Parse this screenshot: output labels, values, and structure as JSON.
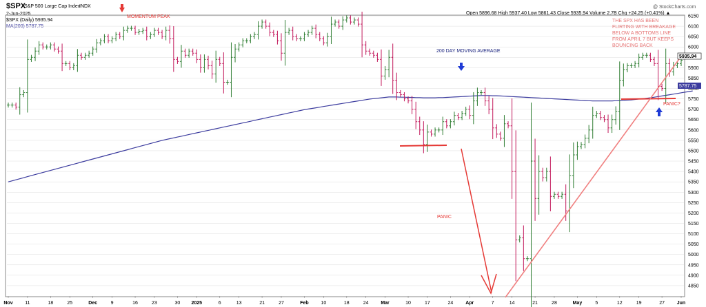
{
  "header": {
    "title": "$SPX",
    "subtitle": "S&P 500 Large Cap Index",
    "exchange": "INDX",
    "date": "2-Jun-2025",
    "legend_price": "$SPX (Daily) 5935.94",
    "legend_ma": "MA(200) 5787.75",
    "ohlc": "Open 5896.68  High 5937.40  Low 5861.43  Close 5935.94  Volume 2.7B  Chg +24.25 (+0.41%) ▲",
    "watermark": "@ StockCharts.com"
  },
  "colors": {
    "up": "#2e7d32",
    "down": "#c2185b",
    "ma": "#3b3b9e",
    "annotation": "#e53935",
    "annotation_blue": "#1a237e",
    "arrow_blue": "#1f3bd6",
    "grid": "#dddddd"
  },
  "annotations": {
    "momentum_peak": "MOMENTUM PEAK",
    "ma_label": "200 DAY MOVING AVERAGE",
    "panic": "PANIC",
    "panic_q": "PANIC?",
    "note": [
      "THE SPX HAS BEEN",
      "FLIRTING WITH BREAKAGE",
      "BELOW A BOTTOMS LINE",
      "FROM APRIL 7 BUT KEEPS",
      "BOUNCING BACK"
    ],
    "last_price_tag": "5935.94",
    "ma_tag": "5787.75"
  },
  "chart_data": {
    "type": "candlestick",
    "ylim": [
      4800,
      6150
    ],
    "y_ticks": [
      4850,
      4900,
      4950,
      5000,
      5050,
      5100,
      5150,
      5200,
      5250,
      5300,
      5350,
      5400,
      5450,
      5500,
      5550,
      5600,
      5650,
      5700,
      5750,
      5800,
      5850,
      5900,
      5950,
      6000,
      6050,
      6100,
      6150
    ],
    "x_tick_labels": [
      "Nov",
      "11",
      "18",
      "25",
      "Dec",
      "9",
      "16",
      "23",
      "30",
      "2025",
      "6",
      "13",
      "21",
      "27",
      "Feb",
      "10",
      "18",
      "24",
      "Mar",
      "10",
      "17",
      "24",
      "Apr",
      "7",
      "14",
      "21",
      "28",
      "May",
      "5",
      "12",
      "19",
      "27",
      "Jun"
    ],
    "close": [
      5720,
      5720,
      5710,
      5770,
      5780,
      5940,
      5950,
      5980,
      6010,
      6000,
      6000,
      6010,
      5990,
      5980,
      5920,
      5920,
      5900,
      5910,
      5960,
      5950,
      5960,
      5970,
      5990,
      6020,
      6030,
      6050,
      6030,
      6040,
      6060,
      6050,
      6080,
      6090,
      6090,
      6070,
      6075,
      6080,
      6050,
      6060,
      6080,
      6070,
      6050,
      6080,
      6040,
      5940,
      5930,
      5980,
      5960,
      5980,
      5970,
      5940,
      5900,
      5940,
      5910,
      5870,
      5940,
      5920,
      5830,
      5830,
      5950,
      5990,
      6010,
      6030,
      6030,
      6050,
      6060,
      6100,
      6120,
      6100,
      6070,
      6060,
      6030,
      5970,
      6070,
      6080,
      6050,
      6040,
      6040,
      6060,
      6070,
      6090,
      6060,
      6040,
      6020,
      6050,
      6110,
      6120,
      6100,
      6130,
      6140,
      6120,
      6130,
      6110,
      6010,
      5980,
      5970,
      5960,
      5940,
      5860,
      5890,
      5950,
      5840,
      5780,
      5770,
      5750,
      5740,
      5700,
      5640,
      5600,
      5530,
      5590,
      5580,
      5600,
      5600,
      5640,
      5620,
      5640,
      5670,
      5660,
      5680,
      5700,
      5670,
      5740,
      5780,
      5780,
      5740,
      5700,
      5610,
      5580,
      5560,
      5630,
      5620,
      5400,
      5070,
      5080,
      4980,
      4980,
      5450,
      5270,
      5400,
      5370,
      5400,
      5280,
      5290,
      5280,
      5290,
      5210,
      5380,
      5480,
      5520,
      5530,
      5560,
      5600,
      5670,
      5680,
      5660,
      5650,
      5610,
      5650,
      5690,
      5840,
      5890,
      5910,
      5910,
      5920,
      5950,
      5960,
      5960,
      5940,
      5920,
      5810,
      5800,
      5920,
      5880,
      5910,
      5920,
      5936
    ],
    "ma200": [
      5350,
      5355,
      5360,
      5365,
      5370,
      5375,
      5380,
      5385,
      5390,
      5395,
      5400,
      5405,
      5410,
      5415,
      5420,
      5425,
      5430,
      5435,
      5440,
      5445,
      5450,
      5455,
      5460,
      5465,
      5470,
      5475,
      5480,
      5485,
      5490,
      5495,
      5500,
      5505,
      5510,
      5515,
      5520,
      5525,
      5530,
      5535,
      5540,
      5545,
      5550,
      5554,
      5558,
      5562,
      5566,
      5570,
      5574,
      5578,
      5582,
      5586,
      5590,
      5594,
      5598,
      5602,
      5606,
      5610,
      5614,
      5618,
      5622,
      5626,
      5630,
      5634,
      5638,
      5642,
      5646,
      5650,
      5654,
      5658,
      5662,
      5666,
      5670,
      5674,
      5678,
      5682,
      5686,
      5690,
      5694,
      5698,
      5701,
      5704,
      5707,
      5710,
      5713,
      5716,
      5719,
      5722,
      5725,
      5728,
      5731,
      5734,
      5737,
      5740,
      5743,
      5746,
      5749,
      5751,
      5753,
      5755,
      5757,
      5759,
      5759,
      5759,
      5758,
      5758,
      5757,
      5757,
      5756,
      5756,
      5755,
      5755,
      5755,
      5755,
      5756,
      5756,
      5757,
      5758,
      5759,
      5760,
      5761,
      5762,
      5763,
      5764,
      5765,
      5766,
      5766,
      5766,
      5765,
      5765,
      5764,
      5763,
      5762,
      5761,
      5760,
      5759,
      5758,
      5757,
      5756,
      5755,
      5754,
      5753,
      5752,
      5751,
      5750,
      5749,
      5748,
      5747,
      5746,
      5745,
      5744,
      5743,
      5742,
      5741,
      5740,
      5740,
      5740,
      5740,
      5740,
      5740,
      5741,
      5742,
      5743,
      5744,
      5745,
      5747,
      5749,
      5751,
      5753,
      5755,
      5758,
      5761,
      5764,
      5767,
      5770,
      5773,
      5776,
      5779,
      5782,
      5785,
      5788
    ]
  }
}
